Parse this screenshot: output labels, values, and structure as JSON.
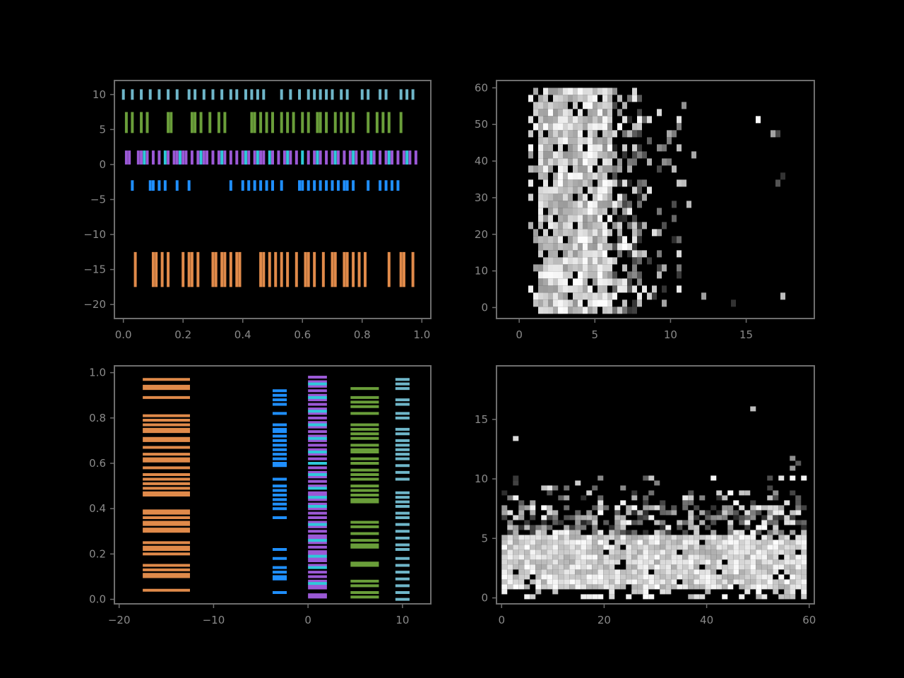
{
  "chart_data": [
    {
      "panel": "top-left",
      "type": "eventplot",
      "orientation": "horizontal",
      "xlim": [
        -0.03,
        1.03
      ],
      "ylim": [
        -22,
        12
      ],
      "xticks": [
        0.0,
        0.2,
        0.4,
        0.6,
        0.8,
        1.0
      ],
      "xtick_labels": [
        "0.0",
        "0.2",
        "0.4",
        "0.6",
        "0.8",
        "1.0"
      ],
      "yticks": [
        10,
        5,
        0,
        -5,
        -10,
        -15,
        -20
      ],
      "ytick_labels": [
        "10",
        "5",
        "0",
        "−5",
        "−10",
        "−15",
        "−20"
      ],
      "grid": false,
      "series": [
        {
          "offset": -15,
          "linelength": 5,
          "color": "#e08a4a",
          "positions": [
            0.04,
            0.1,
            0.11,
            0.13,
            0.15,
            0.2,
            0.22,
            0.23,
            0.25,
            0.3,
            0.31,
            0.33,
            0.34,
            0.36,
            0.38,
            0.39,
            0.46,
            0.47,
            0.49,
            0.51,
            0.53,
            0.55,
            0.58,
            0.61,
            0.62,
            0.64,
            0.67,
            0.7,
            0.71,
            0.74,
            0.75,
            0.77,
            0.79,
            0.81,
            0.89,
            0.93,
            0.94,
            0.97
          ]
        },
        {
          "offset": -3,
          "linelength": 1.5,
          "color": "#1f8fff",
          "positions": [
            0.03,
            0.09,
            0.1,
            0.12,
            0.14,
            0.18,
            0.22,
            0.36,
            0.4,
            0.42,
            0.44,
            0.46,
            0.48,
            0.5,
            0.53,
            0.59,
            0.6,
            0.62,
            0.64,
            0.66,
            0.68,
            0.7,
            0.72,
            0.74,
            0.75,
            0.77,
            0.82,
            0.86,
            0.88,
            0.9,
            0.92
          ]
        },
        {
          "offset": 1,
          "linelength": 2,
          "color": "#9b59d6",
          "positions": [
            0.01,
            0.02,
            0.05,
            0.06,
            0.08,
            0.1,
            0.12,
            0.15,
            0.17,
            0.18,
            0.2,
            0.21,
            0.23,
            0.25,
            0.27,
            0.28,
            0.3,
            0.32,
            0.34,
            0.36,
            0.38,
            0.4,
            0.42,
            0.44,
            0.46,
            0.47,
            0.5,
            0.52,
            0.54,
            0.56,
            0.58,
            0.62,
            0.64,
            0.66,
            0.68,
            0.7,
            0.72,
            0.74,
            0.76,
            0.78,
            0.8,
            0.82,
            0.84,
            0.86,
            0.88,
            0.9,
            0.92,
            0.94,
            0.96,
            0.98
          ]
        },
        {
          "offset": 1,
          "linelength": 2,
          "color": "#2ec9d9",
          "positions": [
            0.07,
            0.14,
            0.19,
            0.26,
            0.33,
            0.41,
            0.45,
            0.49,
            0.55,
            0.6,
            0.65,
            0.71,
            0.77,
            0.83,
            0.89,
            0.95
          ]
        },
        {
          "offset": 6,
          "linelength": 3,
          "color": "#6a9e3a",
          "positions": [
            0.01,
            0.03,
            0.06,
            0.08,
            0.15,
            0.16,
            0.23,
            0.24,
            0.26,
            0.29,
            0.32,
            0.34,
            0.43,
            0.44,
            0.46,
            0.48,
            0.5,
            0.53,
            0.55,
            0.57,
            0.6,
            0.62,
            0.65,
            0.66,
            0.68,
            0.71,
            0.73,
            0.75,
            0.77,
            0.82,
            0.85,
            0.87,
            0.89,
            0.93
          ]
        },
        {
          "offset": 10,
          "linelength": 1.5,
          "color": "#6fb6c9",
          "positions": [
            0.0,
            0.03,
            0.06,
            0.09,
            0.12,
            0.15,
            0.18,
            0.22,
            0.24,
            0.27,
            0.3,
            0.33,
            0.36,
            0.38,
            0.41,
            0.43,
            0.45,
            0.47,
            0.53,
            0.56,
            0.59,
            0.62,
            0.64,
            0.66,
            0.68,
            0.7,
            0.73,
            0.75,
            0.8,
            0.82,
            0.86,
            0.88,
            0.93,
            0.95,
            0.97
          ]
        }
      ]
    },
    {
      "panel": "top-right",
      "type": "heatmap",
      "xlim": [
        -1.5,
        19.5
      ],
      "ylim": [
        -3,
        62
      ],
      "xticks": [
        0,
        5,
        10,
        15
      ],
      "xtick_labels": [
        "0",
        "5",
        "10",
        "15"
      ],
      "yticks": [
        0,
        10,
        20,
        30,
        40,
        50,
        60
      ],
      "ytick_labels": [
        "0",
        "10",
        "20",
        "30",
        "40",
        "50",
        "60"
      ],
      "colormap": "gray",
      "grid": false
    },
    {
      "panel": "bottom-left",
      "type": "eventplot",
      "orientation": "vertical",
      "xlim": [
        -20.5,
        13
      ],
      "ylim": [
        -0.02,
        1.03
      ],
      "xticks": [
        -20,
        -10,
        0,
        10
      ],
      "xtick_labels": [
        "−20",
        "−10",
        "0",
        "10"
      ],
      "yticks": [
        0.0,
        0.2,
        0.4,
        0.6,
        0.8,
        1.0
      ],
      "ytick_labels": [
        "0.0",
        "0.2",
        "0.4",
        "0.6",
        "0.8",
        "1.0"
      ],
      "grid": false,
      "series": [
        {
          "offset": -15,
          "linelength": 5,
          "color": "#e08a4a",
          "positions": [
            0.04,
            0.1,
            0.11,
            0.13,
            0.15,
            0.2,
            0.22,
            0.23,
            0.25,
            0.3,
            0.31,
            0.33,
            0.34,
            0.36,
            0.38,
            0.39,
            0.46,
            0.47,
            0.49,
            0.51,
            0.53,
            0.55,
            0.58,
            0.61,
            0.62,
            0.64,
            0.67,
            0.7,
            0.71,
            0.74,
            0.75,
            0.77,
            0.79,
            0.81,
            0.89,
            0.93,
            0.94,
            0.97
          ]
        },
        {
          "offset": -3,
          "linelength": 1.5,
          "color": "#1f8fff",
          "positions": [
            0.03,
            0.09,
            0.1,
            0.12,
            0.14,
            0.18,
            0.22,
            0.36,
            0.4,
            0.42,
            0.44,
            0.46,
            0.48,
            0.5,
            0.53,
            0.59,
            0.6,
            0.62,
            0.64,
            0.66,
            0.68,
            0.7,
            0.72,
            0.74,
            0.75,
            0.77,
            0.82,
            0.86,
            0.88,
            0.9,
            0.92
          ]
        },
        {
          "offset": 1,
          "linelength": 2,
          "color": "#9b59d6",
          "positions": [
            0.01,
            0.02,
            0.05,
            0.06,
            0.08,
            0.1,
            0.12,
            0.15,
            0.17,
            0.18,
            0.2,
            0.21,
            0.23,
            0.25,
            0.27,
            0.28,
            0.3,
            0.32,
            0.34,
            0.36,
            0.38,
            0.4,
            0.42,
            0.44,
            0.46,
            0.47,
            0.5,
            0.52,
            0.54,
            0.56,
            0.58,
            0.62,
            0.64,
            0.66,
            0.68,
            0.7,
            0.72,
            0.74,
            0.76,
            0.78,
            0.8,
            0.82,
            0.84,
            0.86,
            0.88,
            0.9,
            0.92,
            0.94,
            0.96,
            0.98
          ]
        },
        {
          "offset": 1,
          "linelength": 2,
          "color": "#2ec9d9",
          "positions": [
            0.07,
            0.14,
            0.19,
            0.26,
            0.33,
            0.41,
            0.45,
            0.49,
            0.55,
            0.6,
            0.65,
            0.71,
            0.77,
            0.83,
            0.89,
            0.95
          ]
        },
        {
          "offset": 6,
          "linelength": 3,
          "color": "#6a9e3a",
          "positions": [
            0.01,
            0.03,
            0.06,
            0.08,
            0.15,
            0.16,
            0.23,
            0.24,
            0.26,
            0.29,
            0.32,
            0.34,
            0.43,
            0.44,
            0.46,
            0.48,
            0.5,
            0.53,
            0.55,
            0.57,
            0.6,
            0.62,
            0.65,
            0.66,
            0.68,
            0.71,
            0.73,
            0.75,
            0.77,
            0.82,
            0.85,
            0.87,
            0.89,
            0.93
          ]
        },
        {
          "offset": 10,
          "linelength": 1.5,
          "color": "#6fb6c9",
          "positions": [
            0.0,
            0.03,
            0.06,
            0.09,
            0.12,
            0.15,
            0.18,
            0.22,
            0.24,
            0.27,
            0.3,
            0.33,
            0.36,
            0.38,
            0.41,
            0.43,
            0.45,
            0.47,
            0.53,
            0.56,
            0.59,
            0.62,
            0.64,
            0.66,
            0.68,
            0.7,
            0.73,
            0.75,
            0.8,
            0.82,
            0.86,
            0.88,
            0.93,
            0.95,
            0.97
          ]
        }
      ]
    },
    {
      "panel": "bottom-right",
      "type": "heatmap",
      "xlim": [
        -1,
        61
      ],
      "ylim": [
        -0.5,
        19.5
      ],
      "xticks": [
        0,
        20,
        40,
        60
      ],
      "xtick_labels": [
        "0",
        "20",
        "40",
        "60"
      ],
      "yticks": [
        0,
        5,
        10,
        15
      ],
      "ytick_labels": [
        "0",
        "5",
        "10",
        "15"
      ],
      "colormap": "gray",
      "grid": false
    }
  ]
}
